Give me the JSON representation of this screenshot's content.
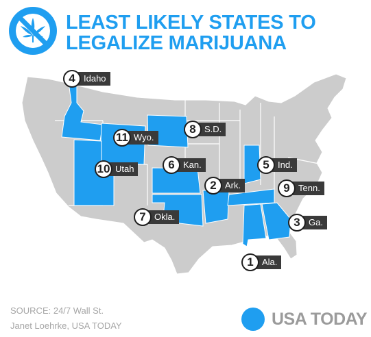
{
  "header": {
    "title_line1": "LEAST LIKELY STATES TO",
    "title_line2": "LEGALIZE MARIJUANA",
    "logo_icon": "no-marijuana-icon",
    "accent_color": "#1f9ef0"
  },
  "map": {
    "highlight_color": "#1f9ef0",
    "base_color": "#cccccc",
    "states_ranked": [
      {
        "rank": "1",
        "label": "Ala."
      },
      {
        "rank": "2",
        "label": "Ark."
      },
      {
        "rank": "3",
        "label": "Ga."
      },
      {
        "rank": "4",
        "label": "Idaho"
      },
      {
        "rank": "5",
        "label": "Ind."
      },
      {
        "rank": "6",
        "label": "Kan."
      },
      {
        "rank": "7",
        "label": "Okla."
      },
      {
        "rank": "8",
        "label": "S.D."
      },
      {
        "rank": "9",
        "label": "Tenn."
      },
      {
        "rank": "10",
        "label": "Utah"
      },
      {
        "rank": "11",
        "label": "Wyo."
      }
    ]
  },
  "footer": {
    "source": "SOURCE:  24/7 Wall St.",
    "credit": "Janet Loehrke, USA TODAY",
    "brand_name": "USA TODAY"
  }
}
